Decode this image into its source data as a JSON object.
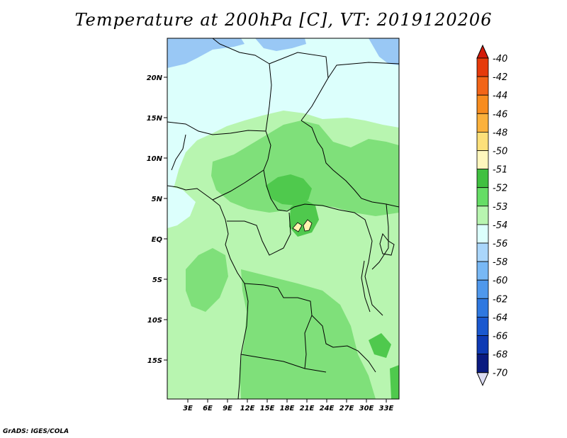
{
  "title": "Temperature at 200hPa [C], VT: 2019120206",
  "credit": "GrADS: IGES/COLA",
  "axes": {
    "lat_labels": [
      "20N",
      "15N",
      "10N",
      "5N",
      "EQ",
      "5S",
      "10S",
      "15S"
    ],
    "lon_labels": [
      "3E",
      "6E",
      "9E",
      "12E",
      "15E",
      "18E",
      "21E",
      "24E",
      "27E",
      "30E",
      "33E"
    ]
  },
  "colorbar": {
    "labels": [
      "-40",
      "-42",
      "-44",
      "-46",
      "-48",
      "-50",
      "-51",
      "-52",
      "-53",
      "-54",
      "-56",
      "-58",
      "-60",
      "-62",
      "-64",
      "-66",
      "-68",
      "-70"
    ],
    "colors": [
      "#d21a0a",
      "#e63a0b",
      "#f26518",
      "#f78c1f",
      "#fbb13c",
      "#fde07a",
      "#fff7bd",
      "#40c040",
      "#66dd66",
      "#b8f5b0",
      "#dcfffc",
      "#aad6fb",
      "#78b8f5",
      "#4f98ec",
      "#2f78e0",
      "#1a58cf",
      "#0e3ab4",
      "#0a1a80",
      "#dcdcf2"
    ]
  },
  "fill_colors": {
    "land_light": "#b8f5b0",
    "land_mid": "#7fe07a",
    "land_dark": "#4fc94d",
    "cyan": "#dcfffc",
    "blue": "#99c8f5",
    "yellow": "#fff3b0"
  }
}
